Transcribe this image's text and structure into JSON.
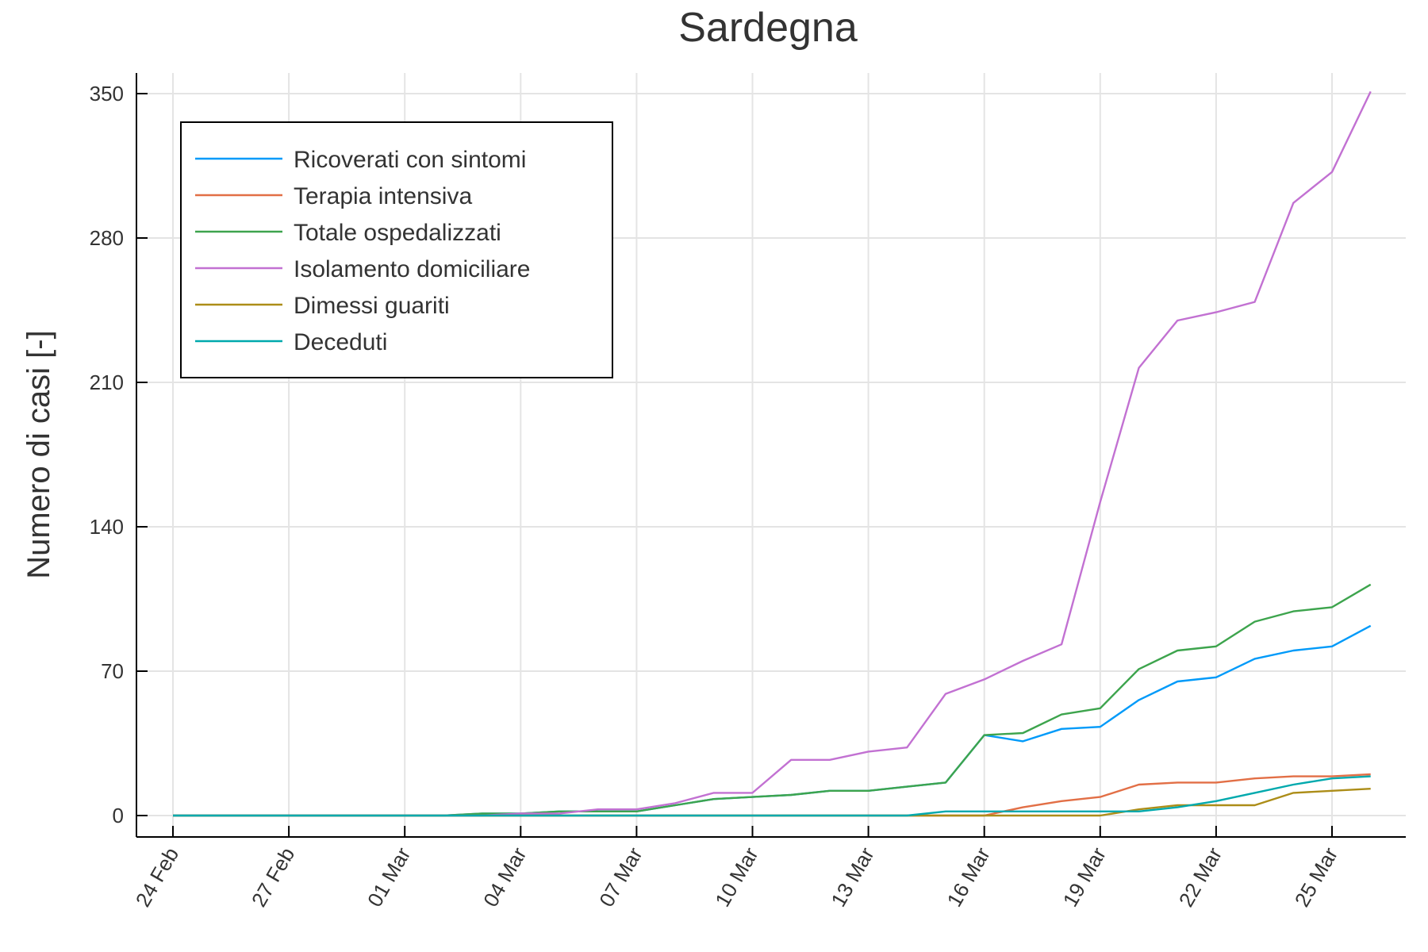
{
  "chart_data": {
    "type": "line",
    "title": "Sardegna",
    "xlabel": "",
    "ylabel": "Numero di casi [-]",
    "x": [
      "24 Feb",
      "25 Feb",
      "26 Feb",
      "27 Feb",
      "28 Feb",
      "29 Feb",
      "01 Mar",
      "02 Mar",
      "03 Mar",
      "04 Mar",
      "05 Mar",
      "06 Mar",
      "07 Mar",
      "08 Mar",
      "09 Mar",
      "10 Mar",
      "11 Mar",
      "12 Mar",
      "13 Mar",
      "14 Mar",
      "15 Mar",
      "16 Mar",
      "17 Mar",
      "18 Mar",
      "19 Mar",
      "20 Mar",
      "21 Mar",
      "22 Mar",
      "23 Mar",
      "24 Mar",
      "25 Mar",
      "26 Mar"
    ],
    "x_ticks": [
      "24 Feb",
      "27 Feb",
      "01 Mar",
      "04 Mar",
      "07 Mar",
      "10 Mar",
      "13 Mar",
      "16 Mar",
      "19 Mar",
      "22 Mar",
      "25 Mar"
    ],
    "y_ticks": [
      0,
      70,
      140,
      210,
      280,
      350
    ],
    "ylim": [
      -10,
      360
    ],
    "grid": true,
    "legend_position": "top-left",
    "series": [
      {
        "name": "Ricoverati con sintomi",
        "color": "#009af9",
        "values": [
          0,
          0,
          0,
          0,
          0,
          0,
          0,
          0,
          1,
          1,
          2,
          2,
          2,
          5,
          8,
          9,
          10,
          12,
          12,
          14,
          16,
          39,
          36,
          42,
          43,
          56,
          65,
          67,
          76,
          80,
          82,
          92
        ]
      },
      {
        "name": "Terapia intensiva",
        "color": "#e26f46",
        "values": [
          0,
          0,
          0,
          0,
          0,
          0,
          0,
          0,
          0,
          0,
          0,
          0,
          0,
          0,
          0,
          0,
          0,
          0,
          0,
          0,
          0,
          0,
          4,
          7,
          9,
          15,
          16,
          16,
          18,
          19,
          19,
          20
        ]
      },
      {
        "name": "Totale ospedalizzati",
        "color": "#3da44d",
        "values": [
          0,
          0,
          0,
          0,
          0,
          0,
          0,
          0,
          1,
          1,
          2,
          2,
          2,
          5,
          8,
          9,
          10,
          12,
          12,
          14,
          16,
          39,
          40,
          49,
          52,
          71,
          80,
          82,
          94,
          99,
          101,
          112
        ]
      },
      {
        "name": "Isolamento domiciliare",
        "color": "#c271d2",
        "values": [
          0,
          0,
          0,
          0,
          0,
          0,
          0,
          0,
          0,
          1,
          1,
          3,
          3,
          6,
          11,
          11,
          27,
          27,
          31,
          33,
          59,
          66,
          75,
          83,
          152,
          217,
          240,
          244,
          249,
          297,
          312,
          351
        ]
      },
      {
        "name": "Dimessi guariti",
        "color": "#ac8d18",
        "values": [
          0,
          0,
          0,
          0,
          0,
          0,
          0,
          0,
          0,
          0,
          0,
          0,
          0,
          0,
          0,
          0,
          0,
          0,
          0,
          0,
          0,
          0,
          0,
          0,
          0,
          3,
          5,
          5,
          5,
          11,
          12,
          13
        ]
      },
      {
        "name": "Deceduti",
        "color": "#00a9ad",
        "values": [
          0,
          0,
          0,
          0,
          0,
          0,
          0,
          0,
          0,
          0,
          0,
          0,
          0,
          0,
          0,
          0,
          0,
          0,
          0,
          0,
          2,
          2,
          2,
          2,
          2,
          2,
          4,
          7,
          11,
          15,
          18,
          19
        ]
      }
    ]
  }
}
